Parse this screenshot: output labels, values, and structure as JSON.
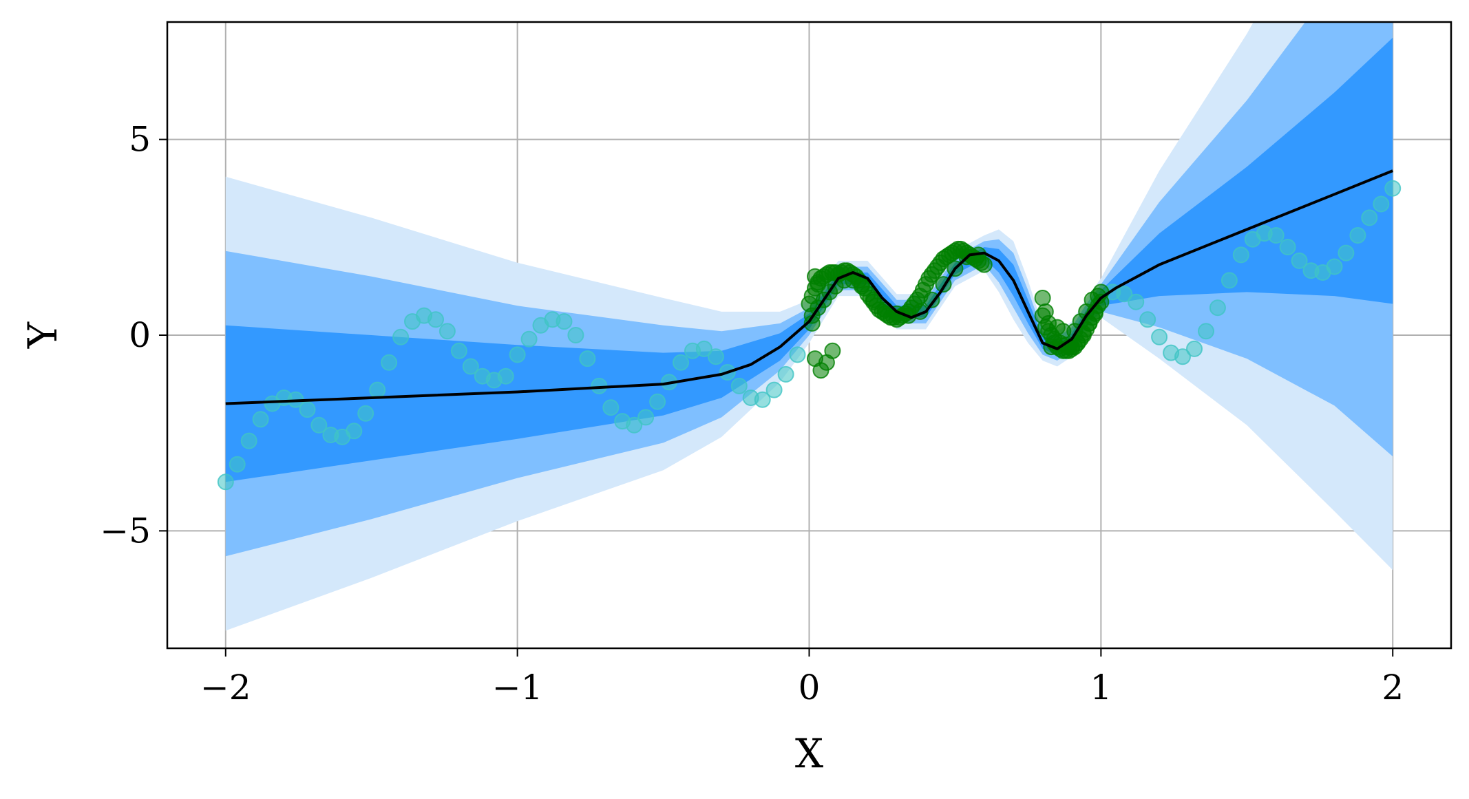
{
  "chart_data": {
    "type": "line",
    "xlabel": "X",
    "ylabel": "Y",
    "xlim": [
      -2.2,
      2.2
    ],
    "ylim": [
      -8,
      8
    ],
    "grid": true,
    "xticks": [
      -2,
      -1,
      0,
      1,
      2
    ],
    "xtick_labels": [
      "−2",
      "−1",
      "0",
      "1",
      "2"
    ],
    "yticks": [
      -5,
      0,
      5
    ],
    "ytick_labels": [
      "−5",
      "0",
      "5"
    ],
    "colors": {
      "mean": "#000000",
      "band_1sigma": "#3399ff",
      "band_2sigma": "#7fbfff",
      "band_3sigma": "#d4e8fb",
      "train_points": "#008000",
      "test_points": "#40c4c4"
    },
    "mean": {
      "x": [
        -2.0,
        -1.5,
        -1.0,
        -0.5,
        -0.3,
        -0.2,
        -0.1,
        0.0,
        0.05,
        0.1,
        0.15,
        0.2,
        0.25,
        0.3,
        0.35,
        0.4,
        0.45,
        0.5,
        0.55,
        0.6,
        0.65,
        0.7,
        0.75,
        0.8,
        0.85,
        0.9,
        0.95,
        1.0,
        1.05,
        1.2,
        1.5,
        1.8,
        2.0
      ],
      "y": [
        -1.75,
        -1.6,
        -1.45,
        -1.25,
        -1.0,
        -0.75,
        -0.3,
        0.35,
        0.9,
        1.45,
        1.6,
        1.45,
        0.95,
        0.6,
        0.45,
        0.6,
        1.1,
        1.7,
        2.05,
        2.1,
        1.9,
        1.4,
        0.6,
        -0.2,
        -0.35,
        -0.1,
        0.5,
        0.95,
        1.2,
        1.8,
        2.7,
        3.6,
        4.2
      ]
    },
    "bands": {
      "x": [
        -2.0,
        -1.5,
        -1.0,
        -0.5,
        -0.3,
        -0.1,
        0.0,
        0.1,
        0.2,
        0.3,
        0.4,
        0.5,
        0.6,
        0.65,
        0.7,
        0.75,
        0.8,
        0.85,
        0.9,
        0.95,
        1.0,
        1.2,
        1.5,
        1.8,
        2.0
      ],
      "sigma1": [
        2.0,
        1.6,
        1.2,
        0.8,
        0.6,
        0.35,
        0.2,
        0.15,
        0.15,
        0.15,
        0.15,
        0.15,
        0.15,
        0.3,
        0.4,
        0.3,
        0.15,
        0.15,
        0.15,
        0.15,
        0.2,
        0.8,
        1.6,
        2.6,
        3.4
      ],
      "sigma2": [
        3.9,
        3.1,
        2.2,
        1.5,
        1.1,
        0.6,
        0.35,
        0.3,
        0.3,
        0.3,
        0.3,
        0.3,
        0.3,
        0.55,
        0.7,
        0.55,
        0.3,
        0.3,
        0.3,
        0.3,
        0.35,
        1.6,
        3.3,
        5.4,
        7.3
      ],
      "sigma3": [
        5.8,
        4.6,
        3.3,
        2.2,
        1.6,
        0.9,
        0.55,
        0.45,
        0.45,
        0.45,
        0.45,
        0.45,
        0.45,
        0.8,
        1.0,
        0.8,
        0.45,
        0.45,
        0.45,
        0.45,
        0.5,
        2.4,
        5.0,
        8.1,
        10.2
      ]
    },
    "test_points": {
      "x": [
        -2.0,
        -1.96,
        -1.92,
        -1.88,
        -1.84,
        -1.8,
        -1.76,
        -1.72,
        -1.68,
        -1.64,
        -1.6,
        -1.56,
        -1.52,
        -1.48,
        -1.44,
        -1.4,
        -1.36,
        -1.32,
        -1.28,
        -1.24,
        -1.2,
        -1.16,
        -1.12,
        -1.08,
        -1.04,
        -1.0,
        -0.96,
        -0.92,
        -0.88,
        -0.84,
        -0.8,
        -0.76,
        -0.72,
        -0.68,
        -0.64,
        -0.6,
        -0.56,
        -0.52,
        -0.48,
        -0.44,
        -0.4,
        -0.36,
        -0.32,
        -0.28,
        -0.24,
        -0.2,
        -0.16,
        -0.12,
        -0.08,
        -0.04,
        1.04,
        1.08,
        1.12,
        1.16,
        1.2,
        1.24,
        1.28,
        1.32,
        1.36,
        1.4,
        1.44,
        1.48,
        1.52,
        1.56,
        1.6,
        1.64,
        1.68,
        1.72,
        1.76,
        1.8,
        1.84,
        1.88,
        1.92,
        1.96,
        2.0
      ],
      "y": [
        -3.75,
        -3.3,
        -2.7,
        -2.15,
        -1.75,
        -1.6,
        -1.65,
        -1.9,
        -2.3,
        -2.55,
        -2.6,
        -2.45,
        -2.0,
        -1.4,
        -0.7,
        -0.05,
        0.35,
        0.5,
        0.4,
        0.1,
        -0.4,
        -0.8,
        -1.05,
        -1.15,
        -1.05,
        -0.5,
        -0.1,
        0.25,
        0.4,
        0.35,
        0.0,
        -0.6,
        -1.3,
        -1.85,
        -2.2,
        -2.3,
        -2.1,
        -1.7,
        -1.2,
        -0.7,
        -0.4,
        -0.35,
        -0.55,
        -0.95,
        -1.3,
        -1.6,
        -1.65,
        -1.4,
        -1.0,
        -0.5,
        1.1,
        1.05,
        0.85,
        0.4,
        -0.05,
        -0.45,
        -0.55,
        -0.35,
        0.1,
        0.7,
        1.4,
        2.05,
        2.45,
        2.6,
        2.55,
        2.25,
        1.9,
        1.65,
        1.6,
        1.75,
        2.1,
        2.55,
        3.0,
        3.35,
        3.75
      ]
    },
    "train_points": {
      "x": [
        0.0,
        0.01,
        0.02,
        0.03,
        0.04,
        0.05,
        0.06,
        0.07,
        0.08,
        0.09,
        0.1,
        0.11,
        0.12,
        0.13,
        0.14,
        0.15,
        0.16,
        0.17,
        0.18,
        0.19,
        0.2,
        0.21,
        0.22,
        0.23,
        0.24,
        0.25,
        0.26,
        0.27,
        0.28,
        0.29,
        0.3,
        0.31,
        0.32,
        0.33,
        0.34,
        0.35,
        0.36,
        0.37,
        0.38,
        0.39,
        0.4,
        0.41,
        0.42,
        0.43,
        0.44,
        0.45,
        0.46,
        0.47,
        0.48,
        0.49,
        0.5,
        0.51,
        0.52,
        0.53,
        0.54,
        0.55,
        0.56,
        0.57,
        0.58,
        0.59,
        0.6,
        0.01,
        0.03,
        0.05,
        0.07,
        0.09,
        0.12,
        0.15,
        0.18,
        0.22,
        0.26,
        0.3,
        0.34,
        0.38,
        0.42,
        0.46,
        0.5,
        0.54,
        0.58,
        0.8,
        0.81,
        0.82,
        0.83,
        0.84,
        0.85,
        0.86,
        0.87,
        0.88,
        0.89,
        0.9,
        0.91,
        0.92,
        0.93,
        0.94,
        0.95,
        0.96,
        0.97,
        0.98,
        0.99,
        1.0,
        0.8,
        0.82,
        0.84,
        0.86,
        0.88,
        0.9,
        0.92,
        0.94,
        0.96,
        0.98,
        1.0,
        0.81,
        0.83,
        0.85,
        0.87,
        0.89,
        0.91,
        0.93,
        0.95,
        0.97,
        0.99,
        0.02,
        0.04,
        0.06,
        0.08,
        0.02,
        0.03,
        0.01
      ],
      "y": [
        0.8,
        1.0,
        1.2,
        1.35,
        1.45,
        1.5,
        1.55,
        1.6,
        1.6,
        1.6,
        1.55,
        1.6,
        1.65,
        1.65,
        1.6,
        1.55,
        1.5,
        1.4,
        1.3,
        1.2,
        1.05,
        0.95,
        0.85,
        0.75,
        0.65,
        0.6,
        0.55,
        0.5,
        0.45,
        0.45,
        0.4,
        0.45,
        0.5,
        0.55,
        0.6,
        0.7,
        0.8,
        0.9,
        1.0,
        1.15,
        1.3,
        1.45,
        1.55,
        1.65,
        1.75,
        1.85,
        1.95,
        2.0,
        2.05,
        2.1,
        2.15,
        2.2,
        2.2,
        2.15,
        2.1,
        2.05,
        2.0,
        1.95,
        1.9,
        1.85,
        1.8,
        0.5,
        0.7,
        0.9,
        1.1,
        1.25,
        1.4,
        1.4,
        1.25,
        0.9,
        0.65,
        0.55,
        0.5,
        0.6,
        0.9,
        1.3,
        1.7,
        2.0,
        2.05,
        0.95,
        0.6,
        0.3,
        0.0,
        -0.2,
        -0.3,
        -0.35,
        -0.4,
        -0.4,
        -0.4,
        -0.35,
        -0.3,
        -0.2,
        -0.1,
        0.0,
        0.15,
        0.3,
        0.45,
        0.6,
        0.75,
        0.85,
        0.5,
        0.1,
        -0.1,
        -0.2,
        -0.25,
        -0.3,
        -0.2,
        0.05,
        0.3,
        0.55,
        1.1,
        0.2,
        -0.3,
        0.2,
        0.1,
        -0.3,
        0.1,
        0.35,
        0.6,
        0.9,
        1.0,
        -0.6,
        -0.9,
        -0.7,
        -0.4,
        1.5,
        1.3,
        0.3
      ]
    }
  }
}
